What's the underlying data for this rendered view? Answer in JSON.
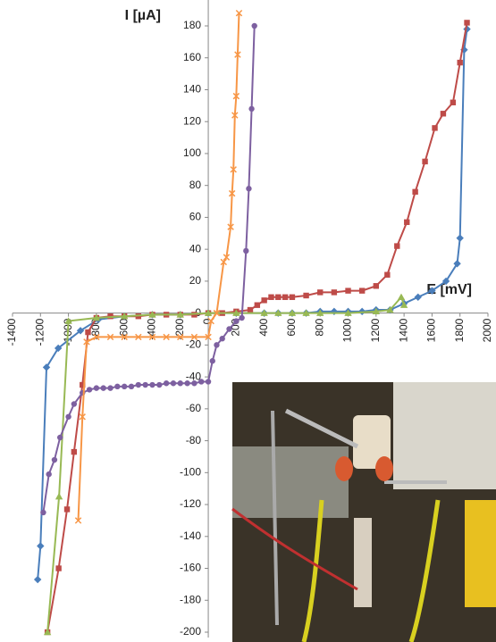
{
  "chart_data": {
    "type": "scatter",
    "y_label": "I [µA]",
    "x_label": "E [mV]",
    "xlim": [
      -1400,
      2000
    ],
    "ylim": [
      -200,
      180
    ],
    "xticks": [
      -1400,
      -1200,
      -1000,
      -800,
      -600,
      -400,
      -200,
      0,
      200,
      400,
      600,
      800,
      1000,
      1200,
      1400,
      1600,
      1800,
      2000
    ],
    "yticks": [
      -200,
      -180,
      -160,
      -140,
      -120,
      -100,
      -80,
      -60,
      -40,
      -20,
      0,
      20,
      40,
      60,
      80,
      100,
      120,
      140,
      160,
      180
    ],
    "series": [
      {
        "color": "#4a7ebb",
        "marker": "diamond",
        "x": [
          -1220,
          -1200,
          -1157,
          -1073,
          -914,
          -786,
          -600,
          -400,
          -200,
          0,
          200,
          400,
          500,
          600,
          700,
          800,
          900,
          1000,
          1100,
          1200,
          1300,
          1400,
          1500,
          1600,
          1700,
          1780,
          1800,
          1830,
          1850
        ],
        "values": [
          -167,
          -146,
          -34,
          -22,
          -11,
          -4,
          -2,
          -1,
          -1,
          0,
          0,
          0,
          0,
          0,
          0,
          1,
          1,
          1,
          1,
          2,
          2,
          6,
          10,
          14,
          20,
          31,
          47,
          165,
          178
        ]
      },
      {
        "color": "#be4b48",
        "marker": "square",
        "x": [
          -1150,
          -1070,
          -1010,
          -960,
          -900,
          -860,
          -800,
          -700,
          -600,
          -500,
          -400,
          -300,
          -200,
          -100,
          0,
          100,
          200,
          300,
          350,
          400,
          450,
          500,
          550,
          600,
          700,
          800,
          900,
          1000,
          1100,
          1200,
          1280,
          1350,
          1420,
          1480,
          1550,
          1620,
          1680,
          1750,
          1800,
          1850
        ],
        "values": [
          -200,
          -160,
          -123,
          -87,
          -45,
          -12,
          -3,
          -2,
          -2,
          -2,
          -1,
          -1,
          -1,
          -1,
          0,
          0,
          1,
          2,
          5,
          8,
          10,
          10,
          10,
          10,
          11,
          13,
          13,
          14,
          14,
          17,
          24,
          42,
          57,
          76,
          95,
          116,
          125,
          132,
          157,
          182
        ]
      },
      {
        "color": "#98b954",
        "marker": "triangle",
        "x": [
          -1150,
          -1067,
          -1000,
          -800,
          -600,
          -400,
          -200,
          0,
          200,
          400,
          500,
          600,
          700,
          800,
          1000,
          1200,
          1300,
          1380,
          1400
        ],
        "values": [
          -200,
          -115,
          -5,
          -3,
          -2,
          -1,
          -1,
          0,
          0,
          0,
          0,
          0,
          0,
          0,
          0,
          1,
          2,
          10,
          5
        ]
      },
      {
        "color": "#7d60a0",
        "marker": "circle",
        "x": [
          -1180,
          -1140,
          -1100,
          -1060,
          -1000,
          -960,
          -900,
          -850,
          -800,
          -750,
          -700,
          -650,
          -600,
          -550,
          -500,
          -450,
          -400,
          -350,
          -300,
          -250,
          -200,
          -150,
          -100,
          -50,
          0,
          30,
          60,
          100,
          150,
          200,
          240,
          270,
          290,
          310,
          330
        ],
        "values": [
          -125,
          -101,
          -92,
          -78,
          -65,
          -57,
          -50,
          -48,
          -47,
          -47,
          -47,
          -46,
          -46,
          -46,
          -45,
          -45,
          -45,
          -45,
          -44,
          -44,
          -44,
          -44,
          -44,
          -43,
          -43,
          -30,
          -20,
          -16,
          -10,
          -5,
          -3,
          39,
          78,
          128,
          180
        ]
      },
      {
        "color": "#f79646",
        "marker": "x",
        "x": [
          -930,
          -900,
          -870,
          -800,
          -700,
          -600,
          -500,
          -400,
          -300,
          -200,
          -100,
          0,
          20,
          60,
          110,
          130,
          160,
          170,
          180,
          190,
          200,
          210,
          220
        ],
        "values": [
          -130,
          -65,
          -18,
          -15,
          -15,
          -15,
          -15,
          -15,
          -15,
          -15,
          -15,
          -15,
          -5,
          0,
          32,
          35,
          54,
          75,
          90,
          124,
          136,
          162,
          188
        ]
      }
    ]
  }
}
